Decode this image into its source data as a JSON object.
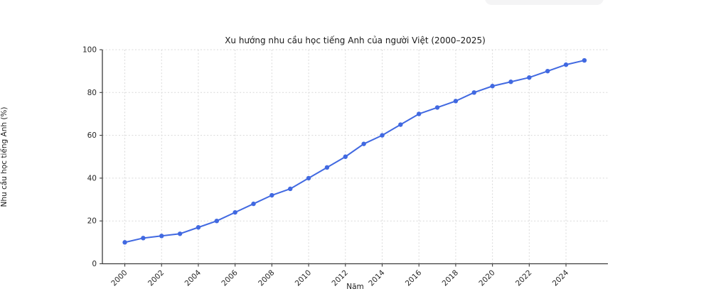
{
  "chart_data": {
    "type": "line",
    "title": "Xu hướng nhu cầu học tiếng Anh của người Việt (2000–2025)",
    "xlabel": "Năm",
    "ylabel": "Nhu cầu học tiếng Anh (%)",
    "x": [
      2000,
      2001,
      2002,
      2003,
      2004,
      2005,
      2006,
      2007,
      2008,
      2009,
      2010,
      2011,
      2012,
      2013,
      2014,
      2015,
      2016,
      2017,
      2018,
      2019,
      2020,
      2021,
      2022,
      2023,
      2024,
      2025
    ],
    "series": [
      {
        "name": "Nhu cầu học tiếng Anh (%)",
        "values": [
          10,
          12,
          13,
          14,
          17,
          20,
          24,
          28,
          32,
          35,
          40,
          45,
          50,
          56,
          60,
          65,
          70,
          73,
          76,
          80,
          83,
          85,
          87,
          90,
          93,
          95
        ],
        "color": "#4169e1",
        "marker": "circle"
      }
    ],
    "xlim": [
      1998.78,
      2026.28
    ],
    "ylim": [
      0,
      100
    ],
    "xticks": [
      2000,
      2002,
      2004,
      2006,
      2008,
      2010,
      2012,
      2014,
      2016,
      2018,
      2020,
      2022,
      2024
    ],
    "yticks": [
      0,
      20,
      40,
      60,
      80,
      100
    ],
    "xtick_rotation_deg": 45,
    "grid": "dashed-both-axes",
    "legend_position": "none",
    "colors": {
      "line": "#4169e1",
      "grid": "#d9d9d9",
      "axis": "#3c3c3c",
      "text": "#262626",
      "background": "#ffffff",
      "top_pill": "#f4f4f5"
    }
  }
}
